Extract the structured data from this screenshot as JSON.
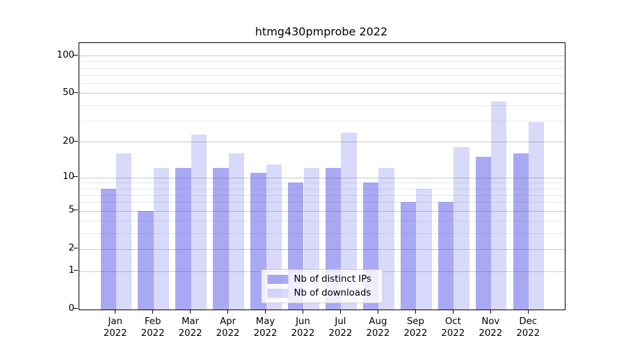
{
  "title": "htmg430pmprobe 2022",
  "chart_data": {
    "type": "bar",
    "title": "htmg430pmprobe 2022",
    "categories": [
      "Jan 2022",
      "Feb 2022",
      "Mar 2022",
      "Apr 2022",
      "May 2022",
      "Jun 2022",
      "Jul 2022",
      "Aug 2022",
      "Sep 2022",
      "Oct 2022",
      "Nov 2022",
      "Dec 2022"
    ],
    "series": [
      {
        "name": "Nb of distinct IPs",
        "color": "#a9a9f3",
        "fill": "rgba(64,64,229,0.45)",
        "values": [
          8,
          5,
          12,
          12,
          11,
          9,
          12,
          9,
          6,
          6,
          15,
          16
        ]
      },
      {
        "name": "Nb of downloads",
        "color": "#dadaf8",
        "fill": "rgba(64,64,229,0.20)",
        "values": [
          16,
          12,
          23,
          16,
          13,
          12,
          24,
          12,
          8,
          18,
          43,
          29
        ]
      }
    ],
    "xlabel": "",
    "ylabel": "",
    "yscale": "log1p",
    "ylim": [
      0,
      126
    ],
    "yticks": [
      0,
      1,
      2,
      5,
      10,
      20,
      50,
      100
    ],
    "yticks_minor": [
      3,
      4,
      6,
      7,
      8,
      9,
      30,
      40,
      60,
      70,
      80,
      90
    ],
    "grid": "horizontal",
    "legend_position": "lower center"
  },
  "legend": {
    "items": [
      {
        "label": "Nb of distinct IPs"
      },
      {
        "label": "Nb of downloads"
      }
    ]
  },
  "colors": {
    "background": "#ffffff",
    "axis": "#000000",
    "grid_major": "#c8c8c8",
    "grid_minor": "#e9e9e9",
    "bar_ips_fill": "rgba(64,64,229,0.45)",
    "bar_downloads_fill": "rgba(64,64,229,0.20)",
    "legend_border": "#cccccc"
  }
}
